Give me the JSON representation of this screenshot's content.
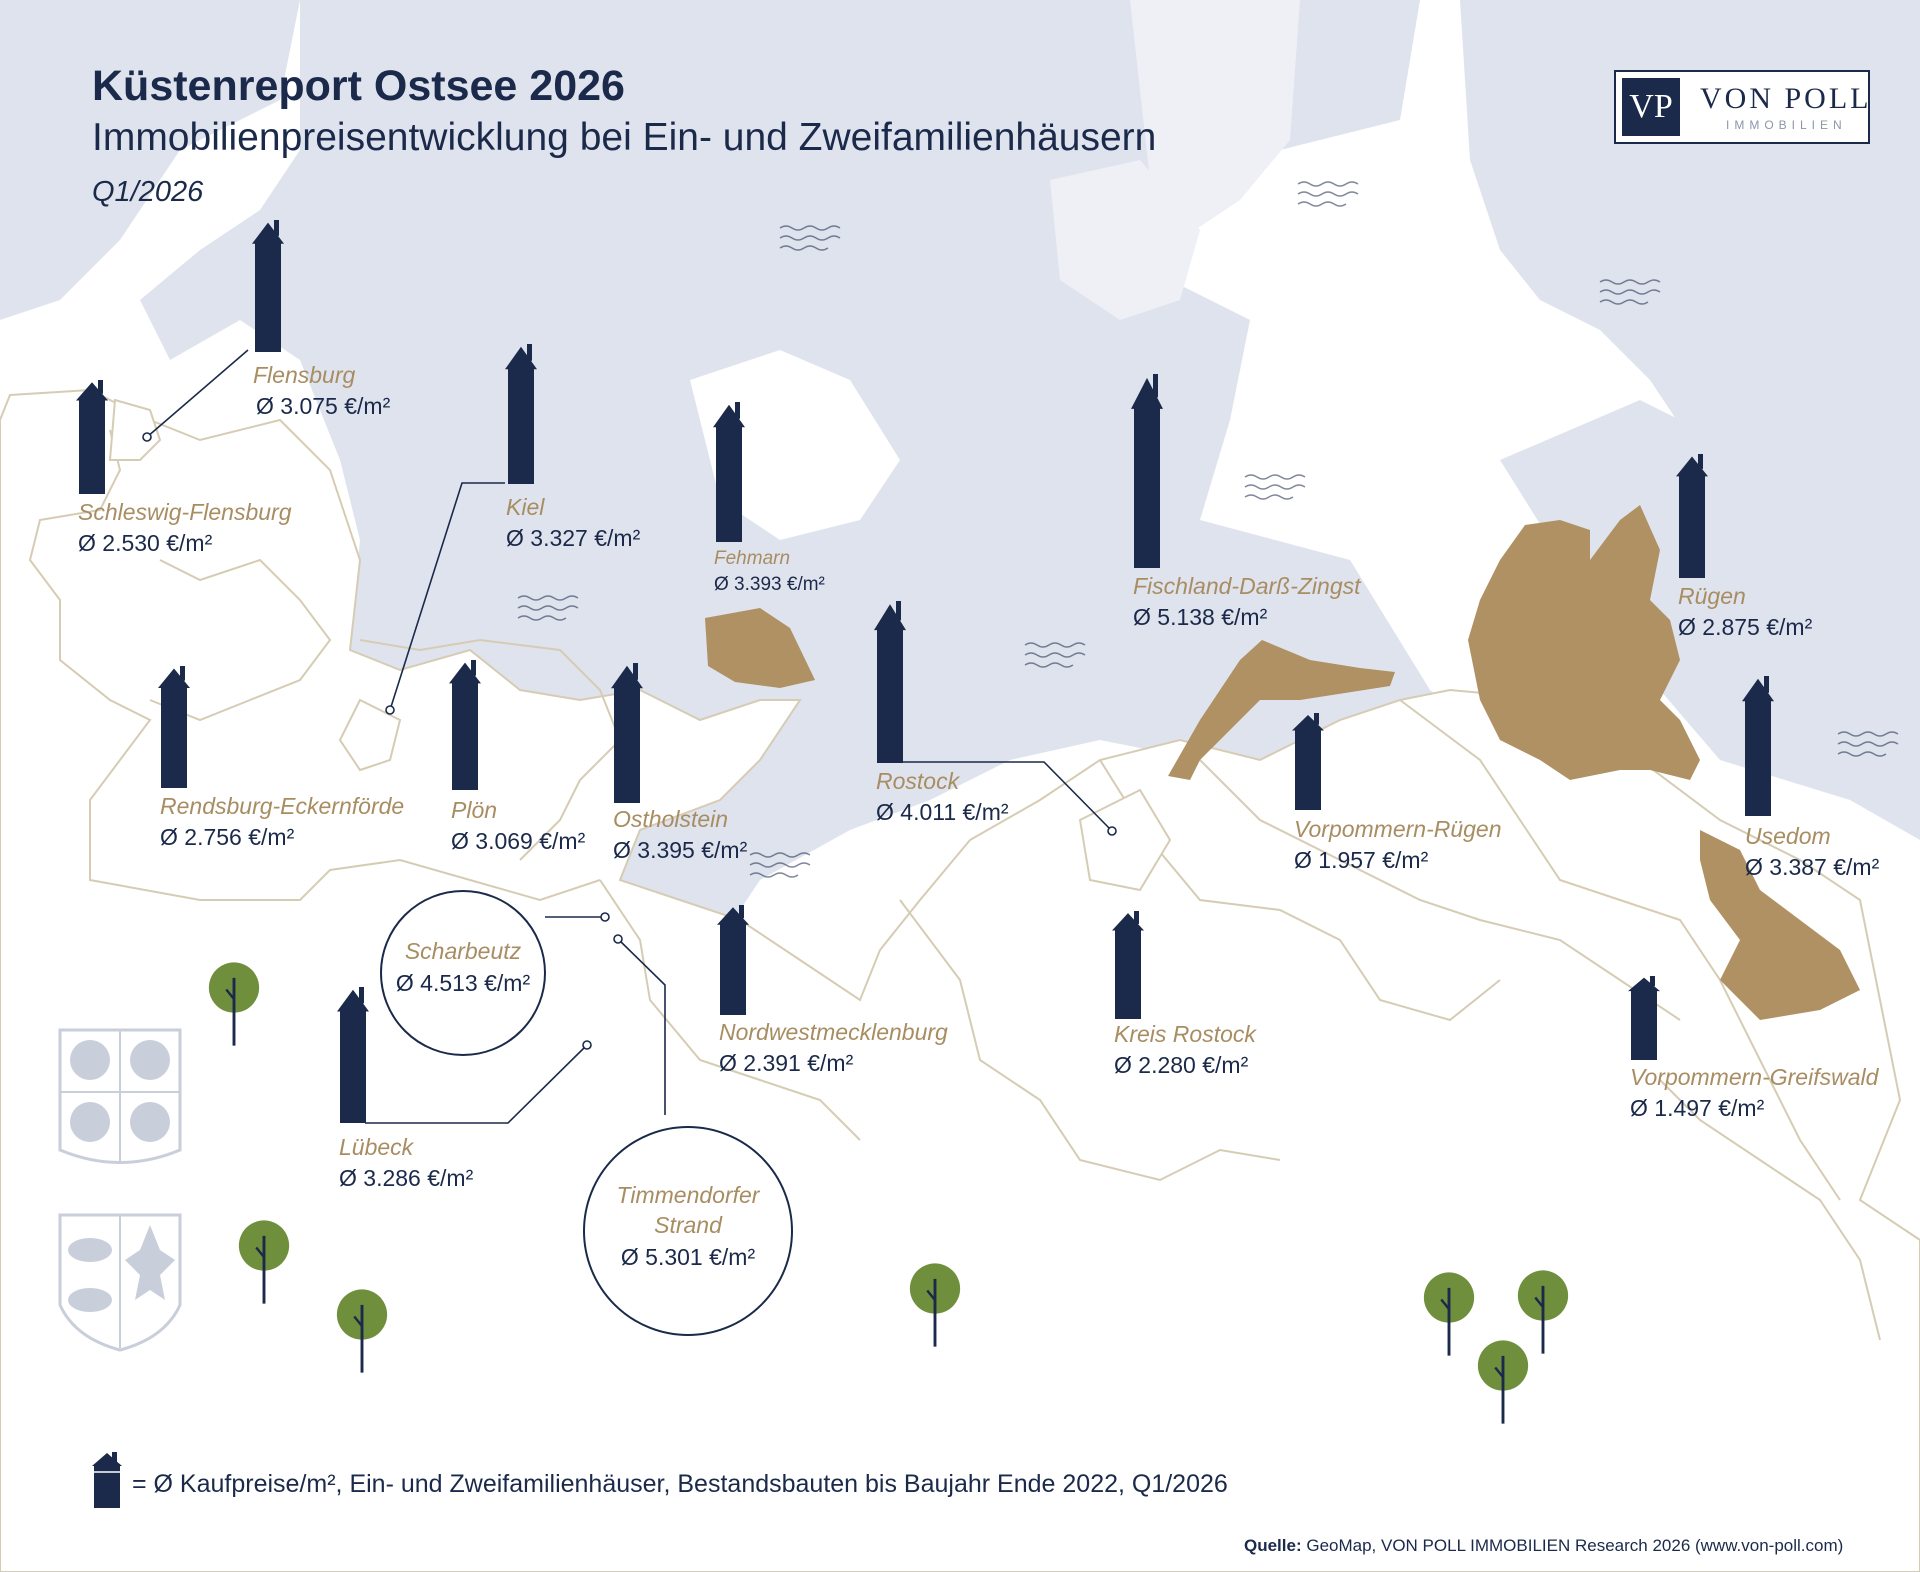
{
  "header": {
    "title": "Küstenreport Ostsee 2026",
    "subtitle": "Immobilienpreisentwicklung bei Ein- und Zweifamilienhäusern",
    "period": "Q1/2026"
  },
  "logo": {
    "mark": "VP",
    "name": "VON POLL",
    "tagline": "IMMOBILIEN"
  },
  "colors": {
    "sea": "#dfe3ee",
    "land": "#ffffff",
    "border": "#d6ccb4",
    "highlight_region": "#b09163",
    "bar": "#1b2a4a",
    "name_text": "#a88d62",
    "tree": "#6f8f3d",
    "coat_of_arms": "#c9cedb"
  },
  "regions": [
    {
      "name": "Flensburg",
      "price": "Ø 3.075 €/m²"
    },
    {
      "name": "Schleswig-Flensburg",
      "price": "Ø 2.530 €/m²"
    },
    {
      "name": "Kiel",
      "price": "Ø 3.327 €/m²"
    },
    {
      "name": "Fehmarn",
      "price": "Ø 3.393 €/m²"
    },
    {
      "name": "Fischland-Darß-Zingst",
      "price": "Ø 5.138 €/m²"
    },
    {
      "name": "Rügen",
      "price": "Ø 2.875 €/m²"
    },
    {
      "name": "Rendsburg-Eckernförde",
      "price": "Ø 2.756 €/m²"
    },
    {
      "name": "Plön",
      "price": "Ø 3.069 €/m²"
    },
    {
      "name": "Ostholstein",
      "price": "Ø 3.395 €/m²"
    },
    {
      "name": "Rostock",
      "price": "Ø 4.011 €/m²"
    },
    {
      "name": "Vorpommern-Rügen",
      "price": "Ø 1.957 €/m²"
    },
    {
      "name": "Usedom",
      "price": "Ø 3.387 €/m²"
    },
    {
      "name": "Nordwestmecklenburg",
      "price": "Ø 2.391 €/m²"
    },
    {
      "name": "Kreis Rostock",
      "price": "Ø 2.280 €/m²"
    },
    {
      "name": "Vorpommern-Greifswald",
      "price": "Ø 1.497 €/m²"
    },
    {
      "name": "Lübeck",
      "price": "Ø 3.286 €/m²"
    }
  ],
  "callouts": [
    {
      "name": "Scharbeutz",
      "price": "Ø 4.513 €/m²"
    },
    {
      "name_line1": "Timmendorfer",
      "name_line2": "Strand",
      "price": "Ø 5.301 €/m²"
    }
  ],
  "legend": {
    "icon": "house-bar-icon",
    "text": "= Ø Kaufpreise/m², Ein- und Zweifamilienhäuser, Bestandsbauten bis Baujahr Ende 2022, Q1/2026"
  },
  "source": {
    "label": "Quelle:",
    "text": " GeoMap, VON POLL IMMOBILIEN Research 2026 (www.von-poll.com)"
  }
}
